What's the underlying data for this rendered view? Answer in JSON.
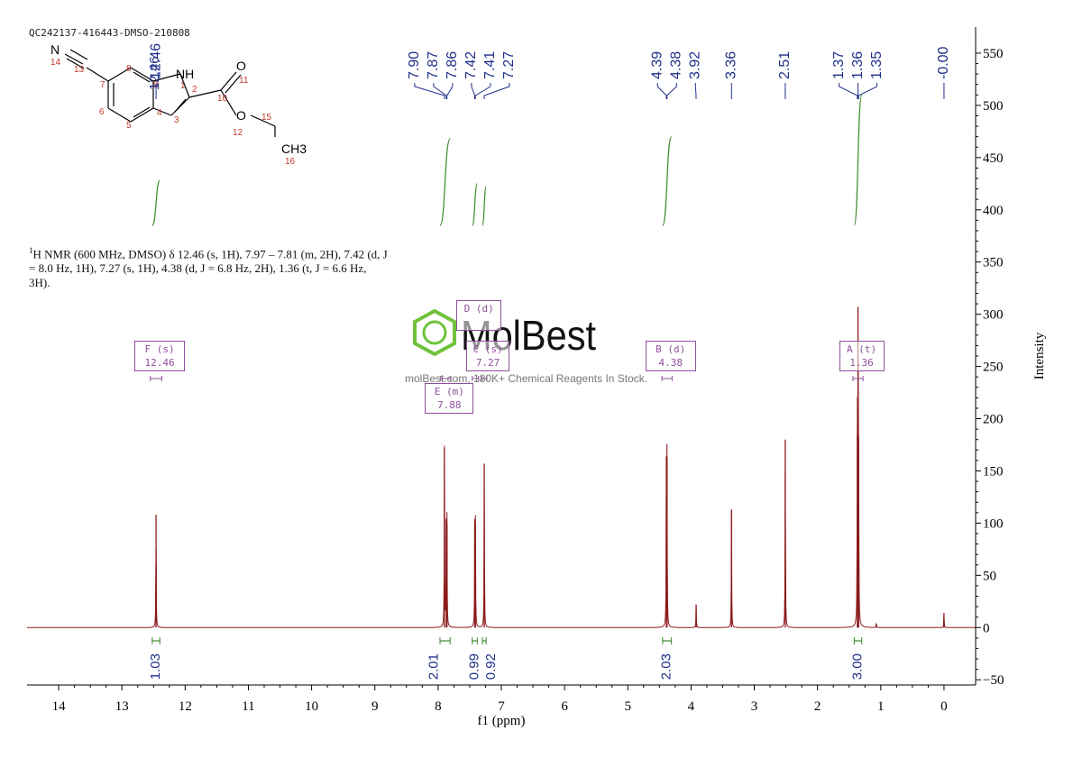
{
  "sample_id": "QC242137-416443-DMSO-210808",
  "nmr_description": {
    "superscript": "1",
    "text": "H NMR (600 MHz, DMSO) δ 12.46 (s, 1H), 7.97 – 7.81 (m, 2H), 7.42 (d, J = 8.0 Hz, 1H), 7.27 (s, 1H), 4.38 (d, J = 6.8 Hz, 2H), 1.36 (t, J = 6.6 Hz, 3H)."
  },
  "watermark": {
    "brand": "MolBest",
    "tagline": "molBest.com, 180K+ Chemical Reagents In Stock."
  },
  "structure": {
    "atoms": [
      "N",
      "NH",
      "O",
      "O",
      "CH3"
    ],
    "numbers": [
      "1",
      "2",
      "3",
      "4",
      "5",
      "6",
      "7",
      "8",
      "9",
      "10",
      "11",
      "12",
      "13",
      "14",
      "15",
      "16"
    ]
  },
  "multiplet_boxes": [
    {
      "label": "F (s)",
      "value": "12.46",
      "center": 12.46
    },
    {
      "label": "D (d)",
      "value": "",
      "center": 7.41
    },
    {
      "label": "C (s)",
      "value": "7.27",
      "center": 7.27
    },
    {
      "label": "E (m)",
      "value": "7.88",
      "center": 7.88
    },
    {
      "label": "B (d)",
      "value": "4.38",
      "center": 4.38
    },
    {
      "label": "A (t)",
      "value": "1.36",
      "center": 1.36
    }
  ],
  "colors": {
    "spectrum": "#8b1a1a",
    "integral": "#3a8a2a",
    "peak_label": "#1e2f8a",
    "annotation": "#8e4f9a",
    "watermark": "#6fc23a"
  },
  "chart_data": {
    "type": "line",
    "title": "",
    "xlabel": "f1 (ppm)",
    "ylabel": "Intensity",
    "x_reversed": true,
    "xlim": [
      -0.5,
      14.5
    ],
    "ylim": [
      -55,
      575
    ],
    "x_ticks": [
      14,
      13,
      12,
      11,
      10,
      9,
      8,
      7,
      6,
      5,
      4,
      3,
      2,
      1,
      0
    ],
    "y_ticks": [
      -50,
      0,
      50,
      100,
      150,
      200,
      250,
      300,
      350,
      400,
      450,
      500,
      550
    ],
    "grid": false,
    "peaks": [
      {
        "ppm": 12.46,
        "height": 108
      },
      {
        "ppm": 7.9,
        "height": 172
      },
      {
        "ppm": 7.87,
        "height": 103
      },
      {
        "ppm": 7.86,
        "height": 100
      },
      {
        "ppm": 7.42,
        "height": 104
      },
      {
        "ppm": 7.41,
        "height": 98
      },
      {
        "ppm": 7.27,
        "height": 157
      },
      {
        "ppm": 4.39,
        "height": 164
      },
      {
        "ppm": 4.38,
        "height": 163
      },
      {
        "ppm": 3.92,
        "height": 22
      },
      {
        "ppm": 3.36,
        "height": 113
      },
      {
        "ppm": 2.51,
        "height": 180
      },
      {
        "ppm": 1.37,
        "height": 185
      },
      {
        "ppm": 1.36,
        "height": 307
      },
      {
        "ppm": 1.35,
        "height": 183
      },
      {
        "ppm": 1.07,
        "height": 4
      },
      {
        "ppm": 0.0,
        "height": 14
      }
    ],
    "peak_labels": [
      "7.90",
      "7.87",
      "7.86",
      "7.42",
      "7.41",
      "7.27",
      "4.39",
      "4.38",
      "3.92",
      "3.36",
      "2.51",
      "1.37",
      "1.36",
      "1.35",
      "-0.00"
    ],
    "peak_label_groups": [
      {
        "labels": [
          "12.46"
        ],
        "ppm": [
          12.46
        ]
      },
      {
        "labels": [
          "7.90",
          "7.87",
          "7.86",
          "7.42",
          "7.41",
          "7.27"
        ],
        "ppm": [
          7.9,
          7.87,
          7.86,
          7.42,
          7.41,
          7.27
        ]
      },
      {
        "labels": [
          "4.39",
          "4.38",
          "3.92"
        ],
        "ppm": [
          4.39,
          4.38,
          3.92
        ]
      },
      {
        "labels": [
          "3.36"
        ],
        "ppm": [
          3.36
        ]
      },
      {
        "labels": [
          "2.51"
        ],
        "ppm": [
          2.51
        ]
      },
      {
        "labels": [
          "1.37",
          "1.36",
          "1.35"
        ],
        "ppm": [
          1.37,
          1.36,
          1.35
        ]
      },
      {
        "labels": [
          "-0.00"
        ],
        "ppm": [
          0.0
        ]
      }
    ],
    "integrals": [
      {
        "ppm": 12.46,
        "from": 12.52,
        "to": 12.4,
        "value": "1.03",
        "y_start": 385,
        "y_end": 428
      },
      {
        "ppm": 7.88,
        "from": 7.97,
        "to": 7.81,
        "value": "2.01",
        "y_start": 385,
        "y_end": 468
      },
      {
        "ppm": 7.42,
        "from": 7.46,
        "to": 7.38,
        "value": "0.99",
        "y_start": 385,
        "y_end": 425
      },
      {
        "ppm": 7.27,
        "from": 7.3,
        "to": 7.24,
        "value": "0.92",
        "y_start": 385,
        "y_end": 422
      },
      {
        "ppm": 4.38,
        "from": 4.45,
        "to": 4.31,
        "value": "2.03",
        "y_start": 385,
        "y_end": 470
      },
      {
        "ppm": 1.36,
        "from": 1.42,
        "to": 1.3,
        "value": "3.00",
        "y_start": 385,
        "y_end": 510
      }
    ]
  }
}
